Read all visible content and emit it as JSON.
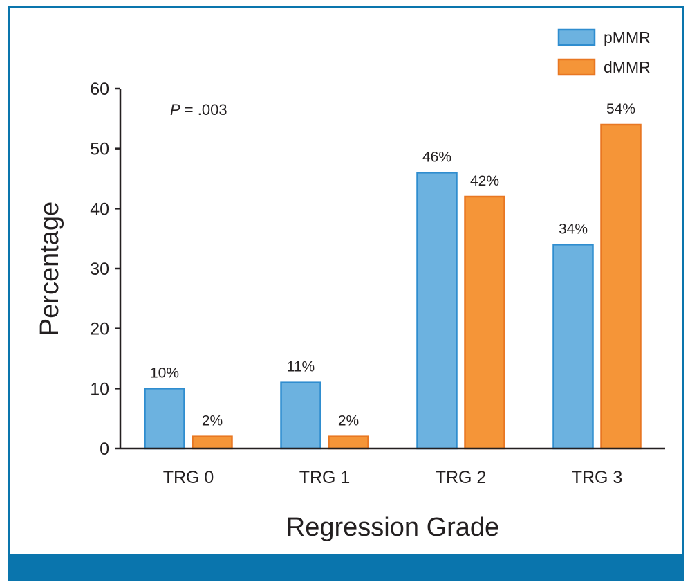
{
  "colors": {
    "frame": "#0a75ad",
    "pmmr_fill": "#6cb2e0",
    "pmmr_stroke": "#2f8dcf",
    "dmmr_fill": "#f59538",
    "dmmr_stroke": "#e87722",
    "axis": "#231f20"
  },
  "chart_data": {
    "type": "bar",
    "title": "",
    "xlabel": "Regression Grade",
    "ylabel": "Percentage",
    "ylim": [
      0,
      60
    ],
    "yticks": [
      0,
      10,
      20,
      30,
      40,
      50,
      60
    ],
    "ytick_labels": [
      "0",
      "10",
      "20",
      "30",
      "40",
      "50",
      "60"
    ],
    "categories": [
      "TRG 0",
      "TRG 1",
      "TRG 2",
      "TRG 3"
    ],
    "series": [
      {
        "name": "pMMR",
        "values": [
          10,
          11,
          46,
          34
        ],
        "labels": [
          "10%",
          "11%",
          "46%",
          "34%"
        ]
      },
      {
        "name": "dMMR",
        "values": [
          2,
          2,
          42,
          54
        ],
        "labels": [
          "2%",
          "2%",
          "42%",
          "54%"
        ]
      }
    ],
    "legend_position": "top-right",
    "annotation": {
      "italic": "P",
      "rest": " = .003"
    }
  }
}
